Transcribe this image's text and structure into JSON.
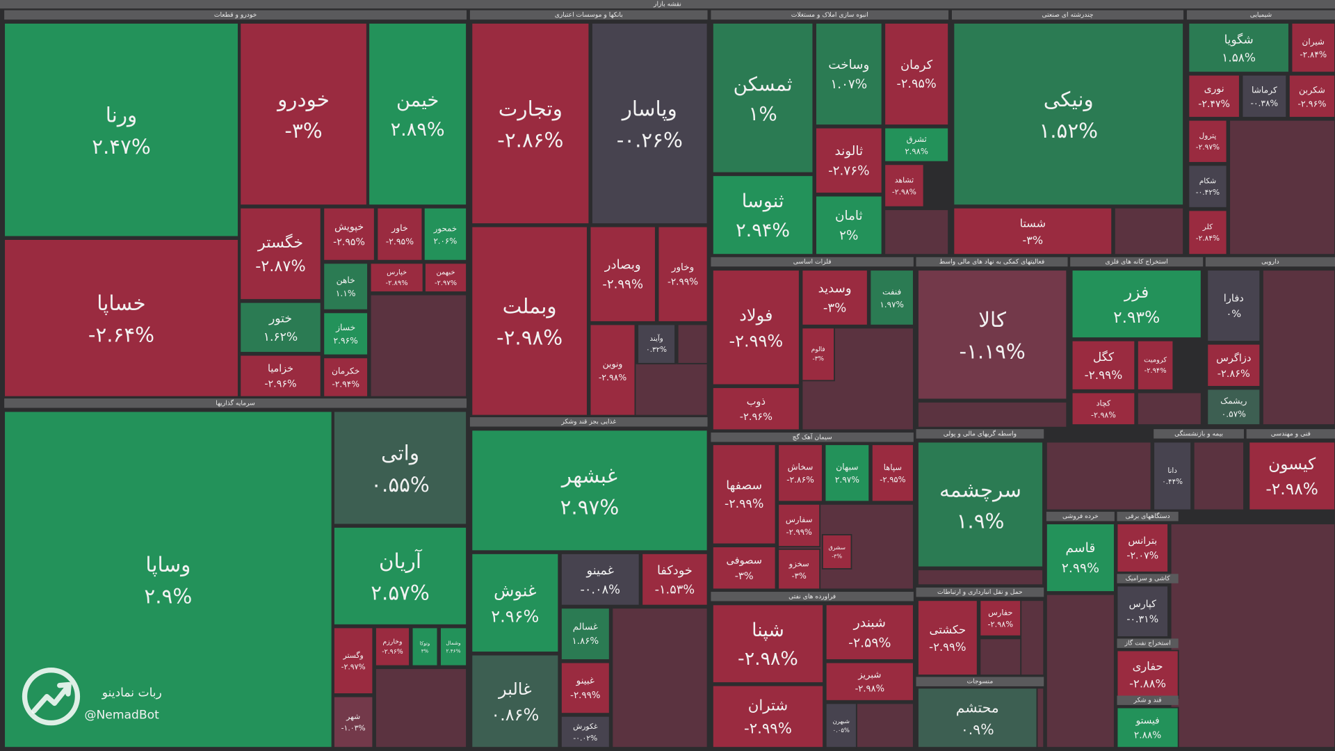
{
  "chart_data": {
    "type": "treemap",
    "title": "نقشه بازار",
    "watermark": {
      "title": "ربات نمادینو",
      "handle": "@NemadBot"
    },
    "sectors": [
      {
        "name": "خودرو و قطعات",
        "categories": [
          "ورنا",
          "خساپا",
          "خودرو",
          "خیمن",
          "خگستر",
          "ختور",
          "خزامیا",
          "خپویش",
          "خاور",
          "خمحور",
          "خاهن",
          "خساز",
          "خکرمان",
          "خپارس",
          "خبهمن"
        ],
        "values": [
          2.47,
          -2.64,
          -3,
          2.89,
          -2.87,
          1.62,
          -2.96,
          -2.95,
          -2.95,
          2.06,
          1.1,
          2.96,
          -2.94,
          -2.89,
          -2.97
        ],
        "value_labels": [
          "۲.۴۷%",
          "-۲.۶۴%",
          "-۳%",
          "۲.۸۹%",
          "-۲.۸۷%",
          "۱.۶۲%",
          "-۲.۹۶%",
          "-۲.۹۵%",
          "-۲.۹۵%",
          "۲.۰۶%",
          "۱.۱%",
          "۲.۹۶%",
          "-۲.۹۴%",
          "-۲.۸۹%",
          "-۲.۹۷%"
        ]
      },
      {
        "name": "سرمایه گذاریها",
        "categories": [
          "وساپا",
          "واتی",
          "آریان",
          "وگستر",
          "شهر",
          "وخارزم",
          "وتوکا",
          "وشمال"
        ],
        "values": [
          2.9,
          0.55,
          2.57,
          -2.97,
          -1.03,
          -2.96,
          3,
          2.46
        ],
        "value_labels": [
          "۲.۹%",
          "۰.۵۵%",
          "۲.۵۷%",
          "-۲.۹۷%",
          "-۱.۰۳%",
          "-۲.۹۶%",
          "۳%",
          "۲.۴۶%"
        ]
      },
      {
        "name": "بانکها و موسسات اعتباری",
        "categories": [
          "وتجارت",
          "وپاسار",
          "وبملت",
          "وبصادر",
          "وخاور",
          "ونوین",
          "وآیند"
        ],
        "values": [
          -2.86,
          -0.26,
          -2.98,
          -2.99,
          -2.99,
          -2.98,
          0.32
        ],
        "value_labels": [
          "-۲.۸۶%",
          "-۰.۲۶%",
          "-۲.۹۸%",
          "-۲.۹۹%",
          "-۲.۹۹%",
          "-۲.۹۸%",
          "۰.۳۲%"
        ]
      },
      {
        "name": "غذایی بجز قند وشکر",
        "categories": [
          "غبشهر",
          "غنوش",
          "غالبر",
          "غمینو",
          "خودکفا",
          "غسالم",
          "غبینو",
          "غکورش"
        ],
        "values": [
          2.97,
          2.96,
          0.86,
          -0.08,
          -1.53,
          1.86,
          -2.99,
          -0.02
        ],
        "value_labels": [
          "۲.۹۷%",
          "۲.۹۶%",
          "۰.۸۶%",
          "-۰.۰۸%",
          "-۱.۵۳%",
          "۱.۸۶%",
          "-۲.۹۹%",
          "-۰.۰۲%"
        ]
      },
      {
        "name": "انبوه سازی املاک و مستغلات",
        "categories": [
          "ثمسکن",
          "وساخت",
          "کرمان",
          "ثالوند",
          "ثشرق",
          "ثنوسا",
          "ثامان",
          "ثشاهد"
        ],
        "values": [
          1,
          1.07,
          -2.95,
          -2.76,
          2.98,
          2.94,
          2,
          -2.98
        ],
        "value_labels": [
          "۱%",
          "۱.۰۷%",
          "-۲.۹۵%",
          "-۲.۷۶%",
          "۲.۹۸%",
          "۲.۹۴%",
          "۲%",
          "-۲.۹۸%"
        ]
      },
      {
        "name": "فلزات اساسی",
        "categories": [
          "فولاد",
          "ذوب",
          "وسدید",
          "فنفت",
          "فالوم"
        ],
        "values": [
          -2.99,
          -2.96,
          -3,
          1.97,
          -3
        ],
        "value_labels": [
          "-۲.۹۹%",
          "-۲.۹۶%",
          "-۳%",
          "۱.۹۷%",
          "-۳%"
        ]
      },
      {
        "name": "سیمان آهک گچ",
        "categories": [
          "سصفها",
          "سصوفی",
          "سخاش",
          "سبهان",
          "سپاها",
          "سفارس",
          "سخزو",
          "سشرق"
        ],
        "values": [
          -2.99,
          -3,
          -2.86,
          2.97,
          -2.95,
          -2.99,
          -3,
          -3
        ],
        "value_labels": [
          "-۲.۹۹%",
          "-۳%",
          "-۲.۸۶%",
          "۲.۹۷%",
          "-۲.۹۵%",
          "-۲.۹۹%",
          "-۳%",
          "-۳%"
        ]
      },
      {
        "name": "فراورده های نفتی",
        "categories": [
          "شپنا",
          "شتران",
          "شبندر",
          "شبریز",
          "شبهرن"
        ],
        "values": [
          -2.98,
          -2.99,
          -2.59,
          -2.98,
          0.05
        ],
        "value_labels": [
          "-۲.۹۸%",
          "-۲.۹۹%",
          "-۲.۵۹%",
          "-۲.۹۸%",
          "۰.۰۵%"
        ]
      },
      {
        "name": "چندرشته ای صنعتی",
        "categories": [
          "ونیکی",
          "شستا"
        ],
        "values": [
          1.52,
          -3
        ],
        "value_labels": [
          "۱.۵۲%",
          "-۳%"
        ]
      },
      {
        "name": "شیمیایی",
        "categories": [
          "شگویا",
          "شیران",
          "نوری",
          "کرماشا",
          "شکربن",
          "پترول",
          "شکام",
          "کلر"
        ],
        "values": [
          1.58,
          -2.84,
          -2.47,
          -0.38,
          -2.96,
          -2.97,
          -0.42,
          -2.84
        ],
        "value_labels": [
          "۱.۵۸%",
          "-۲.۸۴%",
          "-۲.۴۷%",
          "-۰.۳۸%",
          "-۲.۹۶%",
          "-۲.۹۷%",
          "-۰.۴۲%",
          "-۲.۸۴%"
        ]
      },
      {
        "name": "فعالیتهای کمکی به نهاد های مالی واسط",
        "categories": [
          "کالا"
        ],
        "values": [
          -1.19
        ],
        "value_labels": [
          "-۱.۱۹%"
        ]
      },
      {
        "name": "استخراج کانه های فلزی",
        "categories": [
          "فزر",
          "کگل",
          "کروميت",
          "کچاد"
        ],
        "values": [
          2.93,
          -2.99,
          -2.94,
          -2.98
        ],
        "value_labels": [
          "۲.۹۳%",
          "-۲.۹۹%",
          "-۲.۹۴%",
          "-۲.۹۸%"
        ]
      },
      {
        "name": "دارویی",
        "categories": [
          "دفارا",
          "دزاگرس",
          "ریشمک"
        ],
        "values": [
          0,
          -2.86,
          0.57
        ],
        "value_labels": [
          "۰%",
          "-۲.۸۶%",
          "۰.۵۷%"
        ]
      },
      {
        "name": "واسطه گریهای مالی و پولی",
        "categories": [
          "سرچشمه"
        ],
        "values": [
          1.9
        ],
        "value_labels": [
          "۱.۹%"
        ]
      },
      {
        "name": "حمل و نقل انبارداری و ارتباطات",
        "categories": [
          "حکشتی",
          "حفارس"
        ],
        "values": [
          -2.99,
          -2.98
        ],
        "value_labels": [
          "-۲.۹۹%",
          "-۲.۹۸%"
        ]
      },
      {
        "name": "منسوجات",
        "categories": [
          "محتشم"
        ],
        "values": [
          0.9
        ],
        "value_labels": [
          "۰.۹%"
        ]
      },
      {
        "name": "بیمه و بازنشستگی",
        "categories": [
          "دانا"
        ],
        "values": [
          0.44
        ],
        "value_labels": [
          "۰.۴۴%"
        ]
      },
      {
        "name": "فنی و مهندسی",
        "categories": [
          "کیسون"
        ],
        "values": [
          -2.98
        ],
        "value_labels": [
          "-۲.۹۸%"
        ]
      },
      {
        "name": "خرده فروشی",
        "categories": [
          "قاسم"
        ],
        "values": [
          2.99
        ],
        "value_labels": [
          "۲.۹۹%"
        ]
      },
      {
        "name": "دستگاههای برقی",
        "categories": [
          "بترانس"
        ],
        "values": [
          -2.07
        ],
        "value_labels": [
          "-۲.۰۷%"
        ]
      },
      {
        "name": "کاشی و سرامیک",
        "categories": [
          "کپارس"
        ],
        "values": [
          -0.31
        ],
        "value_labels": [
          "-۰.۳۱%"
        ]
      },
      {
        "name": "استخراج نفت گاز",
        "categories": [
          "حفاری"
        ],
        "values": [
          -2.88
        ],
        "value_labels": [
          "-۲.۸۸%"
        ]
      },
      {
        "name": "قند و شکر",
        "categories": [
          "فیستو"
        ],
        "values": [
          2.88
        ],
        "value_labels": [
          "۲.۸۸%"
        ]
      }
    ]
  }
}
